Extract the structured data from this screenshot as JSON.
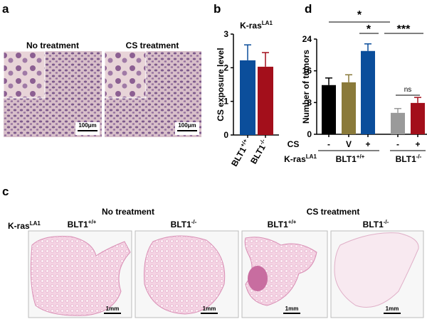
{
  "panel_labels": [
    "a",
    "b",
    "c",
    "d"
  ],
  "panel_a": {
    "image_titles": [
      "No treatment",
      "CS treatment"
    ],
    "scale_bars": [
      "100μm",
      "100μm"
    ]
  },
  "chart_data": [
    {
      "type": "bar",
      "title": "K-ras",
      "title_sup": "LA1",
      "y_label": "CS exposure level",
      "categories": [
        "BLT1",
        "BLT1"
      ],
      "category_sups": [
        "+/+",
        "-/-"
      ],
      "values": [
        2.22,
        2.03
      ],
      "errors": [
        0.46,
        0.42
      ],
      "colors": [
        "#0b4e9b",
        "#a30f1b"
      ],
      "ylim": [
        0,
        3
      ],
      "yticks": [
        0,
        1,
        2,
        3
      ]
    },
    {
      "type": "bar",
      "y_label": "Number of tumors",
      "row_label": "CS",
      "categories": [
        "-",
        "V",
        "+",
        "-",
        "+"
      ],
      "values": [
        12.4,
        13.1,
        21.0,
        5.4,
        7.9
      ],
      "errors": [
        1.8,
        1.9,
        1.8,
        1.1,
        1.4
      ],
      "colors": [
        "#000000",
        "#8a7a3a",
        "#0b4e9b",
        "#9a9a9a",
        "#a30f1b"
      ],
      "ylim": [
        0,
        24
      ],
      "yticks": [
        0,
        8,
        16,
        24
      ],
      "group_row_label": "K-ras",
      "group_row_label_sup": "LA1",
      "groups": [
        "BLT1",
        "BLT1"
      ],
      "group_sups": [
        "+/+",
        "-/-"
      ],
      "annotations": [
        "*",
        "*",
        "***",
        "ns"
      ]
    }
  ],
  "panel_c": {
    "headers": [
      "No treatment",
      "CS treatment"
    ],
    "row_label": "K-ras",
    "row_label_sup": "LA1",
    "image_labels": [
      "BLT1",
      "BLT1",
      "BLT1",
      "BLT1"
    ],
    "image_label_sups": [
      "+/+",
      "-/-",
      "+/+",
      "-/-"
    ],
    "scale_bars": [
      "1mm",
      "1mm",
      "1mm",
      "1mm"
    ]
  }
}
